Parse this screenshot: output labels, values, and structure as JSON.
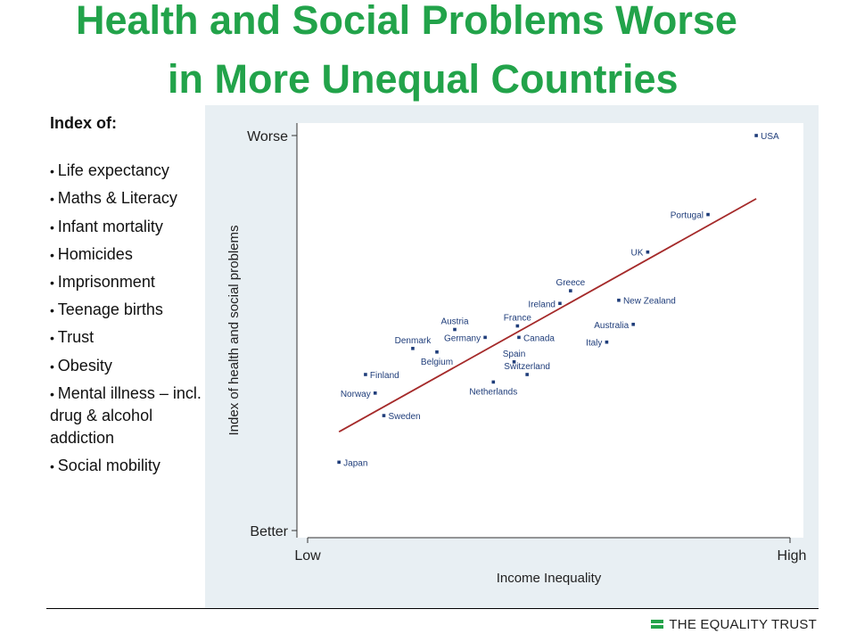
{
  "title": {
    "line1": "Health and Social Problems Worse",
    "line2": "in More Unequal Countries"
  },
  "legend": {
    "heading": "Index of:",
    "items": [
      "Life expectancy",
      "Maths & Literacy",
      "Infant mortality",
      "Homicides",
      "Imprisonment",
      "Teenage births",
      "Trust",
      "Obesity",
      "Mental illness – incl. drug & alcohol addiction",
      "Social mobility"
    ]
  },
  "brand": {
    "name": "THE EQUALITY TRUST",
    "color": "#22a34a"
  },
  "chart_data": {
    "type": "scatter",
    "xlabel": "Income Inequality",
    "ylabel": "Index of health and social problems",
    "x_ticks": {
      "low": "Low",
      "high": "High"
    },
    "y_ticks": {
      "high": "Worse",
      "low": "Better"
    },
    "xlim": [
      0,
      100
    ],
    "ylim": [
      0,
      100
    ],
    "grid": false,
    "trend_line": {
      "from": [
        6.5,
        25
      ],
      "to": [
        93,
        84
      ],
      "color": "#a52a2a"
    },
    "point_color": "#1f3d7a",
    "points": [
      {
        "label": "USA",
        "x": 93,
        "y": 100,
        "label_side": "right"
      },
      {
        "label": "Portugal",
        "x": 83,
        "y": 80,
        "label_side": "left"
      },
      {
        "label": "UK",
        "x": 70.5,
        "y": 70.5,
        "label_side": "left"
      },
      {
        "label": "New Zealand",
        "x": 64.5,
        "y": 58.3,
        "label_side": "right"
      },
      {
        "label": "Greece",
        "x": 54.5,
        "y": 60.7,
        "label_side": "above"
      },
      {
        "label": "Ireland",
        "x": 52.3,
        "y": 57.5,
        "label_side": "left"
      },
      {
        "label": "Australia",
        "x": 67.5,
        "y": 52.2,
        "label_side": "left"
      },
      {
        "label": "Italy",
        "x": 62,
        "y": 47.7,
        "label_side": "left"
      },
      {
        "label": "France",
        "x": 43.5,
        "y": 51.8,
        "label_side": "above"
      },
      {
        "label": "Canada",
        "x": 43.8,
        "y": 48.9,
        "label_side": "right"
      },
      {
        "label": "Spain",
        "x": 42.8,
        "y": 42.7,
        "label_side": "above"
      },
      {
        "label": "Switzerland",
        "x": 45.5,
        "y": 39.5,
        "label_side": "above"
      },
      {
        "label": "Netherlands",
        "x": 38.5,
        "y": 37.6,
        "label_side": "below"
      },
      {
        "label": "Austria",
        "x": 30.5,
        "y": 50.9,
        "label_side": "above"
      },
      {
        "label": "Germany",
        "x": 36.8,
        "y": 48.9,
        "label_side": "left"
      },
      {
        "label": "Denmark",
        "x": 21.8,
        "y": 46.1,
        "label_side": "above"
      },
      {
        "label": "Belgium",
        "x": 26.8,
        "y": 45.2,
        "label_side": "below"
      },
      {
        "label": "Finland",
        "x": 12,
        "y": 39.5,
        "label_side": "right"
      },
      {
        "label": "Norway",
        "x": 14,
        "y": 34.8,
        "label_side": "left"
      },
      {
        "label": "Sweden",
        "x": 15.8,
        "y": 29.1,
        "label_side": "right"
      },
      {
        "label": "Japan",
        "x": 6.5,
        "y": 17.3,
        "label_side": "right"
      }
    ]
  }
}
